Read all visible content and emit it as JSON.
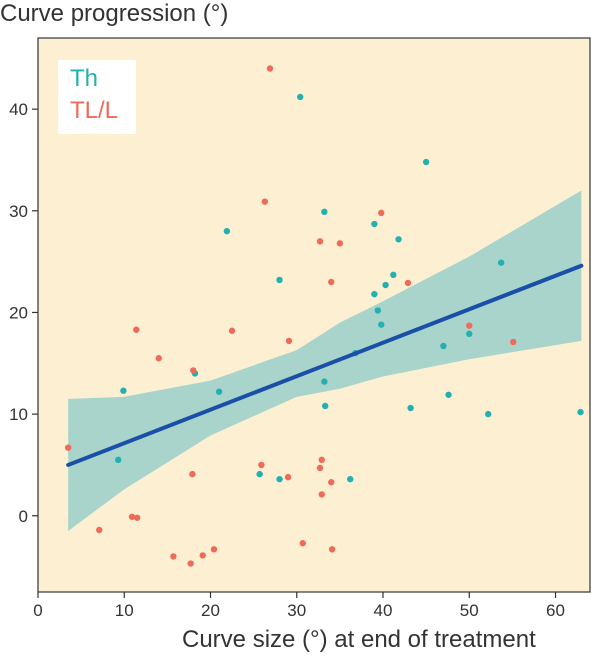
{
  "chart_data": {
    "type": "scatter",
    "title": "",
    "ylabel": "Curve progression (°)",
    "xlabel": "Curve size (°) at end of treatment",
    "xlim": [
      0,
      64
    ],
    "ylim": [
      -7.5,
      47
    ],
    "x_ticks": [
      "0",
      "10",
      "20",
      "30",
      "40",
      "50",
      "60"
    ],
    "y_ticks": [
      "0",
      "10",
      "20",
      "30",
      "40"
    ],
    "x_tick_values": [
      0,
      10,
      20,
      30,
      40,
      50,
      60
    ],
    "y_tick_values": [
      0,
      10,
      20,
      30,
      40
    ],
    "grid": false,
    "legend_position": "top-left",
    "background": "#fdf0d2",
    "series": [
      {
        "name": "Th",
        "color": "#22b0b0",
        "points": [
          [
            30.4,
            41.2
          ],
          [
            45.0,
            34.8
          ],
          [
            33.2,
            29.9
          ],
          [
            21.9,
            28.0
          ],
          [
            39.0,
            28.7
          ],
          [
            41.8,
            27.2
          ],
          [
            53.7,
            24.9
          ],
          [
            41.2,
            23.7
          ],
          [
            28.0,
            23.2
          ],
          [
            40.3,
            22.7
          ],
          [
            39.0,
            21.8
          ],
          [
            39.4,
            20.2
          ],
          [
            39.8,
            18.8
          ],
          [
            50.0,
            17.9
          ],
          [
            47.0,
            16.7
          ],
          [
            36.8,
            16.0
          ],
          [
            18.2,
            14.0
          ],
          [
            33.2,
            13.2
          ],
          [
            9.9,
            12.3
          ],
          [
            21.0,
            12.2
          ],
          [
            47.6,
            11.9
          ],
          [
            33.3,
            10.8
          ],
          [
            43.2,
            10.6
          ],
          [
            62.9,
            10.2
          ],
          [
            52.2,
            10.0
          ],
          [
            9.3,
            5.5
          ],
          [
            25.7,
            4.1
          ],
          [
            28.0,
            3.6
          ],
          [
            36.2,
            3.6
          ]
        ]
      },
      {
        "name": "TL/L",
        "color": "#f06a5a",
        "points": [
          [
            26.9,
            44.0
          ],
          [
            26.3,
            30.9
          ],
          [
            39.8,
            29.8
          ],
          [
            32.7,
            27.0
          ],
          [
            35.0,
            26.8
          ],
          [
            34.0,
            23.0
          ],
          [
            42.9,
            22.9
          ],
          [
            11.4,
            18.3
          ],
          [
            22.5,
            18.2
          ],
          [
            50.0,
            18.7
          ],
          [
            29.1,
            17.2
          ],
          [
            55.1,
            17.1
          ],
          [
            14.0,
            15.5
          ],
          [
            18.0,
            14.3
          ],
          [
            3.5,
            6.7
          ],
          [
            25.9,
            5.0
          ],
          [
            32.9,
            5.5
          ],
          [
            32.7,
            4.7
          ],
          [
            17.9,
            4.1
          ],
          [
            29.0,
            3.8
          ],
          [
            34.0,
            3.3
          ],
          [
            32.9,
            2.1
          ],
          [
            10.9,
            -0.1
          ],
          [
            11.5,
            -0.2
          ],
          [
            7.1,
            -1.4
          ],
          [
            30.7,
            -2.7
          ],
          [
            20.4,
            -3.3
          ],
          [
            34.1,
            -3.3
          ],
          [
            15.7,
            -4.0
          ],
          [
            19.1,
            -3.9
          ],
          [
            17.7,
            -4.7
          ]
        ]
      }
    ],
    "regression": {
      "color": "#1a4fa8",
      "band_color": "#a8d4cc",
      "x": [
        3.5,
        10,
        20,
        30,
        35,
        40,
        50,
        63
      ],
      "y": [
        5.0,
        7.0,
        10.5,
        14.0,
        15.8,
        17.3,
        20.4,
        24.6
      ],
      "lower": [
        -1.5,
        2.6,
        7.9,
        11.7,
        12.5,
        13.7,
        15.4,
        17.2
      ],
      "upper": [
        11.5,
        11.7,
        13.3,
        16.3,
        19.0,
        21.1,
        25.5,
        32.0
      ]
    }
  }
}
